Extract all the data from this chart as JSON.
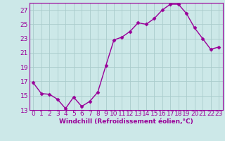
{
  "x": [
    0,
    1,
    2,
    3,
    4,
    5,
    6,
    7,
    8,
    9,
    10,
    11,
    12,
    13,
    14,
    15,
    16,
    17,
    18,
    19,
    20,
    21,
    22,
    23
  ],
  "y": [
    16.8,
    15.3,
    15.2,
    14.5,
    13.2,
    14.8,
    13.5,
    14.2,
    15.5,
    19.2,
    22.8,
    23.2,
    24.0,
    25.2,
    25.0,
    25.8,
    27.0,
    27.8,
    27.8,
    26.5,
    24.5,
    23.0,
    21.5,
    21.8
  ],
  "line_color": "#990099",
  "marker": "D",
  "marker_size": 2.5,
  "bg_color": "#cce8e8",
  "grid_color": "#aacccc",
  "xlabel": "Windchill (Refroidissement éolien,°C)",
  "ylabel": "",
  "ylim": [
    13,
    28
  ],
  "yticks": [
    13,
    15,
    17,
    19,
    21,
    23,
    25,
    27
  ],
  "xticks": [
    0,
    1,
    2,
    3,
    4,
    5,
    6,
    7,
    8,
    9,
    10,
    11,
    12,
    13,
    14,
    15,
    16,
    17,
    18,
    19,
    20,
    21,
    22,
    23
  ],
  "xlabel_fontsize": 6.5,
  "tick_fontsize": 6.5,
  "line_width": 1.0
}
